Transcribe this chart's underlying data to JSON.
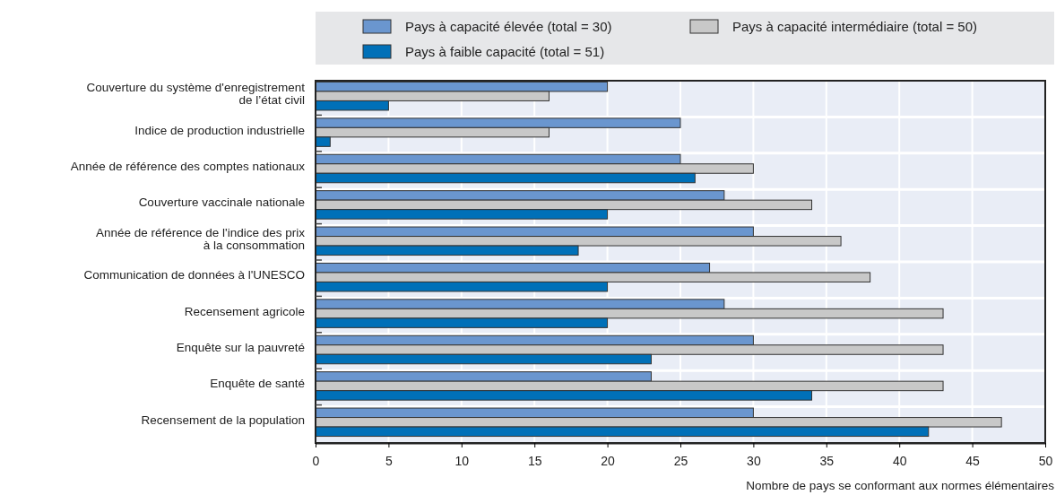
{
  "chart_data": {
    "type": "bar",
    "orientation": "horizontal",
    "xlabel": "Nombre de pays se conformant aux normes élémentaires",
    "categories": [
      "Couverture du système d'enregistrement\nde l’état civil",
      "Indice de production industrielle",
      "Année de référence des comptes nationaux",
      "Couverture vaccinale nationale",
      "Année de référence de l'indice des prix\nà la consommation",
      "Communication de données à l'UNESCO",
      "Recensement agricole",
      "Enquête sur la pauvreté",
      "Enquête de santé",
      "Recensement de la population"
    ],
    "series": [
      {
        "name": "Pays à capacité élevée (total = 30)",
        "color": "#6a96cf",
        "values": [
          20,
          25,
          25,
          28,
          30,
          27,
          28,
          30,
          23,
          30
        ]
      },
      {
        "name": "Pays à capacité intermédiaire (total = 50)",
        "color": "#c8c8c8",
        "values": [
          16,
          16,
          30,
          34,
          36,
          38,
          43,
          43,
          43,
          47
        ]
      },
      {
        "name": "Pays à faible capacité (total = 51)",
        "color": "#0070b8",
        "values": [
          5,
          1,
          26,
          20,
          18,
          20,
          20,
          23,
          34,
          42
        ]
      }
    ],
    "xlim": [
      0,
      50
    ],
    "xticks": [
      0,
      5,
      10,
      15,
      20,
      25,
      30,
      35,
      40,
      45,
      50
    ],
    "grid": true,
    "legend": "top"
  }
}
